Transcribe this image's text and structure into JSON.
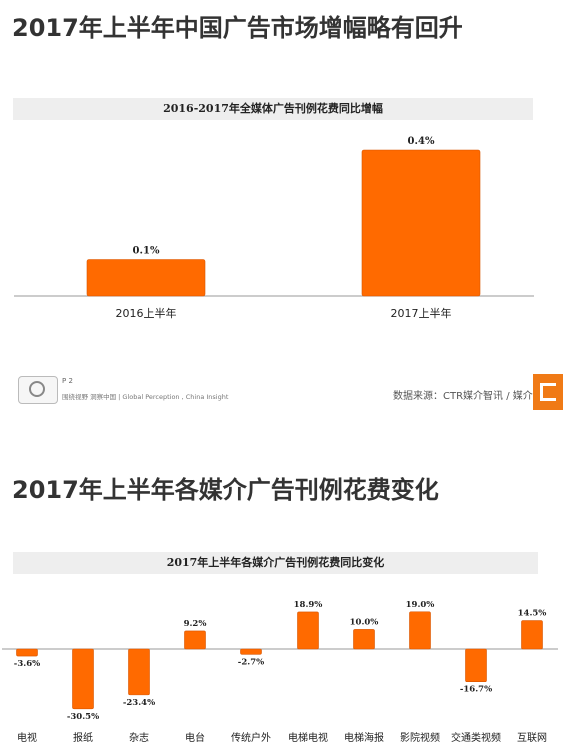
{
  "headings": {
    "top": "2017年上半年中国广告市场增幅略有回升",
    "bottom": "2017年上半年各媒介广告刊例花费变化"
  },
  "footer": {
    "page": "P 2",
    "tagline": "围绕视野 洞察中国 | Global Perception , China Insight",
    "source": "数据来源：CTR媒介智讯 / 媒介动量"
  },
  "colors": {
    "bar": "#ff6a00",
    "bar_edge": "#d85500",
    "axis": "#999999",
    "text": "#222222"
  },
  "chart_data": [
    {
      "type": "bar",
      "title": "2016-2017年全媒体广告刊例花费同比增幅",
      "categories": [
        "2016上半年",
        "2017上半年"
      ],
      "values": [
        0.1,
        0.4
      ],
      "value_labels": [
        "0.1%",
        "0.4%"
      ],
      "unit": "%",
      "ylim": [
        0,
        0.4
      ],
      "grid": false,
      "legend": "none"
    },
    {
      "type": "bar",
      "title": "2017年上半年各媒介广告刊例花费同比变化",
      "categories": [
        "电视",
        "报纸",
        "杂志",
        "电台",
        "传统户外",
        "电梯电视",
        "电梯海报",
        "影院视频",
        "交通类视频",
        "互联网"
      ],
      "values": [
        -3.6,
        -30.5,
        -23.4,
        9.2,
        -2.7,
        18.9,
        10.0,
        19.0,
        -16.7,
        14.5
      ],
      "value_labels": [
        "-3.6%",
        "-30.5%",
        "-23.4%",
        "9.2%",
        "-2.7%",
        "18.9%",
        "10.0%",
        "19.0%",
        "-16.7%",
        "14.5%"
      ],
      "unit": "%",
      "ylim": [
        -30.5,
        19.0
      ],
      "grid": false,
      "legend": "none"
    }
  ]
}
